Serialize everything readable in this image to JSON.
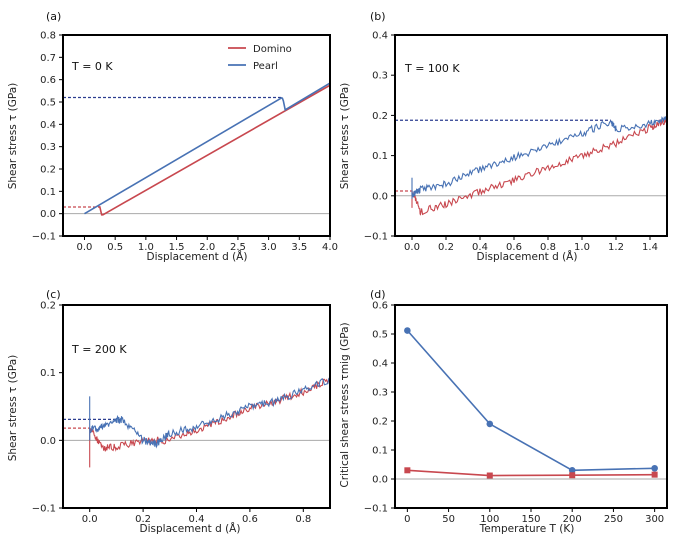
{
  "colors": {
    "domino": "#c8484f",
    "pearl": "#4872b4",
    "zero_line": "#aaaaaa"
  },
  "chart_data": [
    {
      "panel": "(a)",
      "type": "line",
      "annotation": "T = 0 K",
      "xlabel": "Displacement d (Å)",
      "ylabel": "Shear stress τ (GPa)",
      "xlim": [
        -0.35,
        4.0
      ],
      "ylim": [
        -0.1,
        0.8
      ],
      "xticks": [
        "0.0",
        "0.5",
        "1.0",
        "1.5",
        "2.0",
        "2.5",
        "3.0",
        "3.5",
        "4.0"
      ],
      "yticks": [
        "−0.1",
        "0.0",
        "0.1",
        "0.2",
        "0.3",
        "0.4",
        "0.5",
        "0.6",
        "0.7",
        "0.8"
      ],
      "legend": {
        "placement": "top-right",
        "entries": [
          "Domino",
          "Pearl"
        ]
      },
      "series": [
        {
          "name": "Domino",
          "color": "domino",
          "x": [
            -0.35,
            0.22,
            0.25,
            0.28,
            0.3,
            4.0
          ],
          "y": [
            0.03,
            0.03,
            0.03,
            -0.005,
            -0.005,
            0.575
          ],
          "dashed_until_x": 0.22
        },
        {
          "name": "Pearl",
          "color": "pearl",
          "x": [
            -0.35,
            3.22,
            3.24,
            3.27,
            4.0
          ],
          "y": [
            0.52,
            0.52,
            0.505,
            0.465,
            0.585
          ],
          "dashed_until_x": 3.22,
          "segment2": {
            "x": [
              0.0,
              3.22
            ],
            "y": [
              0.0,
              0.52
            ]
          }
        }
      ]
    },
    {
      "panel": "(b)",
      "type": "line",
      "annotation": "T = 100 K",
      "xlabel": "Displacement d (Å)",
      "ylabel": "Shear stress τ (GPa)",
      "xlim": [
        -0.1,
        1.5
      ],
      "ylim": [
        -0.1,
        0.4
      ],
      "xticks": [
        "0.0",
        "0.2",
        "0.4",
        "0.6",
        "0.8",
        "1.0",
        "1.2",
        "1.4"
      ],
      "yticks": [
        "−0.1",
        "0.0",
        "0.1",
        "0.2",
        "0.3",
        "0.4"
      ],
      "series": [
        {
          "name": "Domino",
          "color": "domino",
          "x": [
            -0.1,
            0.0,
            0.05,
            0.2,
            0.4,
            0.6,
            0.8,
            1.0,
            1.2,
            1.4,
            1.5
          ],
          "y": [
            0.012,
            0.012,
            -0.04,
            -0.02,
            0.01,
            0.04,
            0.07,
            0.1,
            0.13,
            0.17,
            0.19
          ],
          "dashed_until_x": 0.0
        },
        {
          "name": "Pearl",
          "color": "pearl",
          "x": [
            -0.1,
            1.17,
            0.0,
            0.05,
            0.2,
            0.4,
            0.6,
            0.8,
            1.0,
            1.17,
            1.2,
            1.4,
            1.5
          ],
          "y": [
            0.188,
            0.188,
            0.0,
            0.015,
            0.03,
            0.065,
            0.095,
            0.125,
            0.155,
            0.185,
            0.165,
            0.18,
            0.195
          ],
          "dashed_until_x": 1.17
        }
      ]
    },
    {
      "panel": "(c)",
      "type": "line",
      "annotation": "T = 200 K",
      "xlabel": "Displacement d (Å)",
      "ylabel": "Shear stress τ (GPa)",
      "xlim": [
        -0.1,
        0.9
      ],
      "ylim": [
        -0.1,
        0.2
      ],
      "xticks": [
        "0.0",
        "0.2",
        "0.4",
        "0.6",
        "0.8"
      ],
      "yticks": [
        "−0.1",
        "0.0",
        "0.1",
        "0.2"
      ],
      "series": [
        {
          "name": "Domino",
          "color": "domino",
          "x": [
            -0.1,
            0.0,
            0.05,
            0.1,
            0.2,
            0.3,
            0.4,
            0.5,
            0.6,
            0.7,
            0.8,
            0.9
          ],
          "y": [
            0.018,
            0.018,
            -0.012,
            -0.01,
            0.0,
            0.0,
            0.015,
            0.03,
            0.048,
            0.058,
            0.072,
            0.09
          ],
          "dashed_until_x": 0.0
        },
        {
          "name": "Pearl",
          "color": "pearl",
          "x": [
            -0.1,
            0.12,
            0.0,
            0.05,
            0.1,
            0.12,
            0.2,
            0.25,
            0.3,
            0.4,
            0.5,
            0.6,
            0.7,
            0.8,
            0.9
          ],
          "y": [
            0.031,
            0.031,
            0.015,
            0.02,
            0.03,
            0.031,
            0.0,
            -0.005,
            0.01,
            0.02,
            0.035,
            0.05,
            0.058,
            0.075,
            0.09
          ],
          "dashed_until_x": 0.12
        }
      ]
    },
    {
      "panel": "(d)",
      "type": "line",
      "xlabel": "Temperature T (K)",
      "ylabel": "Critical shear stress τmig (GPa)",
      "xlim": [
        -15,
        315
      ],
      "ylim": [
        -0.1,
        0.6
      ],
      "xticks": [
        "0",
        "50",
        "100",
        "150",
        "200",
        "250",
        "300"
      ],
      "yticks": [
        "−0.1",
        "0.0",
        "0.1",
        "0.2",
        "0.3",
        "0.4",
        "0.5",
        "0.6"
      ],
      "series": [
        {
          "name": "Pearl",
          "color": "pearl",
          "marker": "circle",
          "x": [
            0,
            100,
            200,
            300
          ],
          "y": [
            0.512,
            0.19,
            0.03,
            0.037
          ]
        },
        {
          "name": "Domino",
          "color": "domino",
          "marker": "square",
          "x": [
            0,
            100,
            200,
            300
          ],
          "y": [
            0.03,
            0.012,
            0.013,
            0.015
          ]
        }
      ]
    }
  ]
}
